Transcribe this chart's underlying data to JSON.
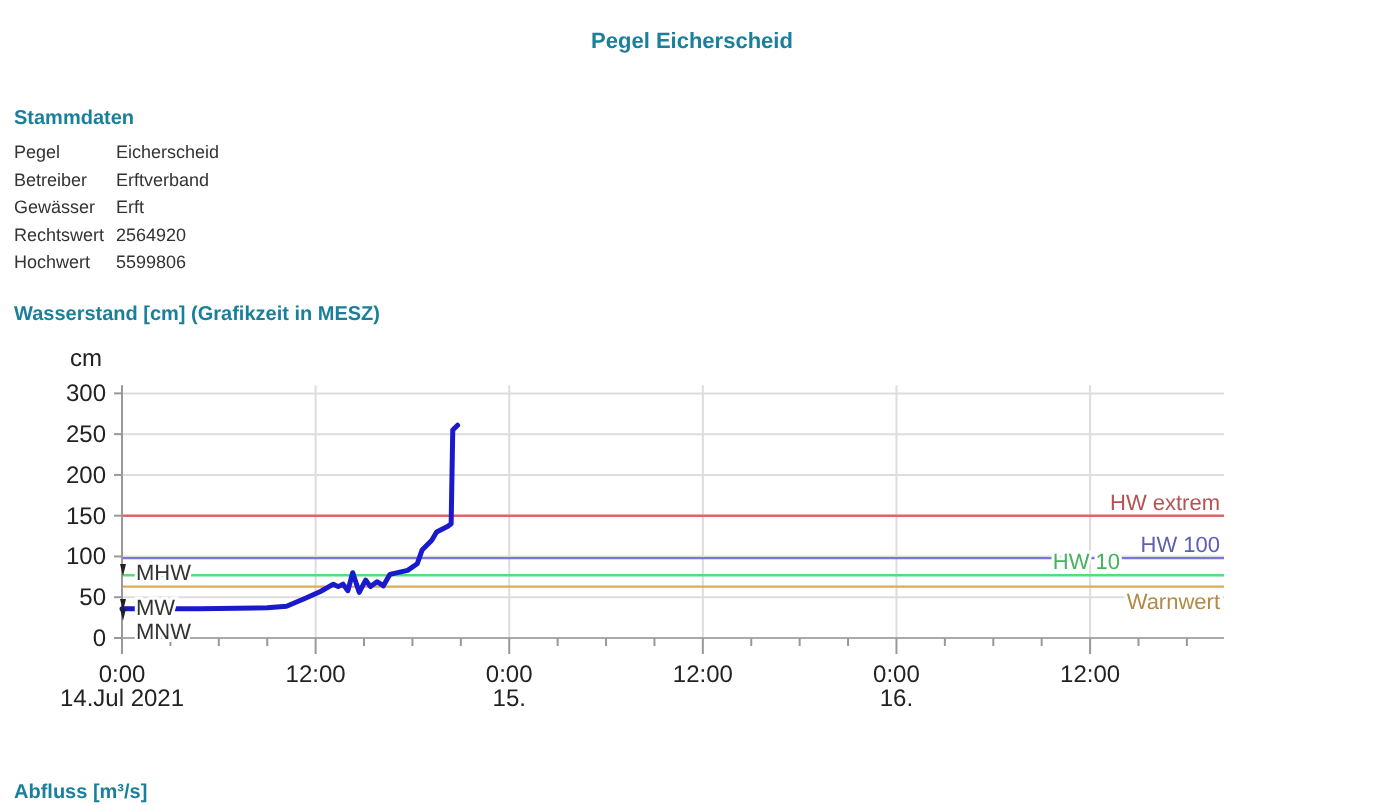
{
  "chart_data": {
    "type": "line",
    "title": "Pegel Eicherscheid",
    "subtitle": "Wasserstand [cm] (Grafikzeit in MESZ)",
    "ylabel": "cm",
    "x": [
      "2021-07-14T00:00",
      "2021-07-14T04:48",
      "2021-07-14T09:00",
      "2021-07-14T10:12",
      "2021-07-14T11:24",
      "2021-07-14T12:18",
      "2021-07-14T13:06",
      "2021-07-14T13:24",
      "2021-07-14T13:42",
      "2021-07-14T14:00",
      "2021-07-14T14:18",
      "2021-07-14T14:42",
      "2021-07-14T15:06",
      "2021-07-14T15:24",
      "2021-07-14T15:48",
      "2021-07-14T16:12",
      "2021-07-14T16:36",
      "2021-07-14T17:42",
      "2021-07-14T18:18",
      "2021-07-14T18:36",
      "2021-07-14T19:12",
      "2021-07-14T19:30",
      "2021-07-14T20:12",
      "2021-07-14T20:24",
      "2021-07-14T20:30",
      "2021-07-14T20:48"
    ],
    "series": [
      {
        "color": "#1a1acc",
        "values": [
          36,
          36,
          37,
          39,
          49,
          57,
          66,
          63,
          66,
          58,
          80,
          56,
          71,
          63,
          69,
          64,
          78,
          83,
          91,
          108,
          120,
          130,
          137,
          140,
          255,
          261
        ]
      }
    ],
    "xlim": [
      "2021-07-14T00:00",
      "2021-07-16T20:18"
    ],
    "xticks": [
      {
        "value": "2021-07-14T00:00",
        "label": "0:00\n14.Jul 2021"
      },
      {
        "value": "2021-07-14T03:00",
        "label": null
      },
      {
        "value": "2021-07-14T06:00",
        "label": null
      },
      {
        "value": "2021-07-14T09:00",
        "label": null
      },
      {
        "value": "2021-07-14T12:00",
        "label": "12:00"
      },
      {
        "value": "2021-07-14T15:00",
        "label": null
      },
      {
        "value": "2021-07-14T18:00",
        "label": null
      },
      {
        "value": "2021-07-14T21:00",
        "label": null
      },
      {
        "value": "2021-07-15T00:00",
        "label": "0:00\n15."
      },
      {
        "value": "2021-07-15T03:00",
        "label": null
      },
      {
        "value": "2021-07-15T06:00",
        "label": null
      },
      {
        "value": "2021-07-15T09:00",
        "label": null
      },
      {
        "value": "2021-07-15T12:00",
        "label": "12:00"
      },
      {
        "value": "2021-07-15T15:00",
        "label": null
      },
      {
        "value": "2021-07-15T18:00",
        "label": null
      },
      {
        "value": "2021-07-15T21:00",
        "label": null
      },
      {
        "value": "2021-07-16T00:00",
        "label": "0:00\n16."
      },
      {
        "value": "2021-07-16T03:00",
        "label": null
      },
      {
        "value": "2021-07-16T06:00",
        "label": null
      },
      {
        "value": "2021-07-16T09:00",
        "label": null
      },
      {
        "value": "2021-07-16T12:00",
        "label": "12:00"
      },
      {
        "value": "2021-07-16T15:00",
        "label": null
      },
      {
        "value": "2021-07-16T18:00",
        "label": null
      }
    ],
    "ylim": [
      0,
      310
    ],
    "yticks": [
      0,
      50,
      100,
      150,
      200,
      250,
      300
    ],
    "grid": true,
    "marker": "none",
    "line_style": "solid",
    "ref_lines": [
      {
        "axis": "y",
        "value": 150,
        "label": "HW extrem",
        "color": "#e06666"
      },
      {
        "axis": "y",
        "value": 98,
        "label": "HW 100",
        "color": "#7777dd"
      },
      {
        "axis": "y",
        "value": 77,
        "label": "HW 10",
        "color": "#55dd77"
      },
      {
        "axis": "y",
        "value": 63,
        "label": "Warnwert",
        "color": "#ddaa55"
      }
    ],
    "annotations": [
      "Stammdaten",
      "Pegel",
      "Eicherscheid",
      "Betreiber",
      "Erftverband",
      "Gewässer",
      "Erft",
      "Rechtswert",
      "2564920",
      "Hochwert",
      "5599806",
      {
        "text": "MHW",
        "x": "2021-07-14T00:00",
        "y": 81
      },
      {
        "text": "MW",
        "x": "2021-07-14T00:00",
        "y": 38
      },
      {
        "text": "MNW",
        "x": "2021-07-14T00:00",
        "y": 26
      },
      "Abfluss [m³/s]"
    ]
  }
}
